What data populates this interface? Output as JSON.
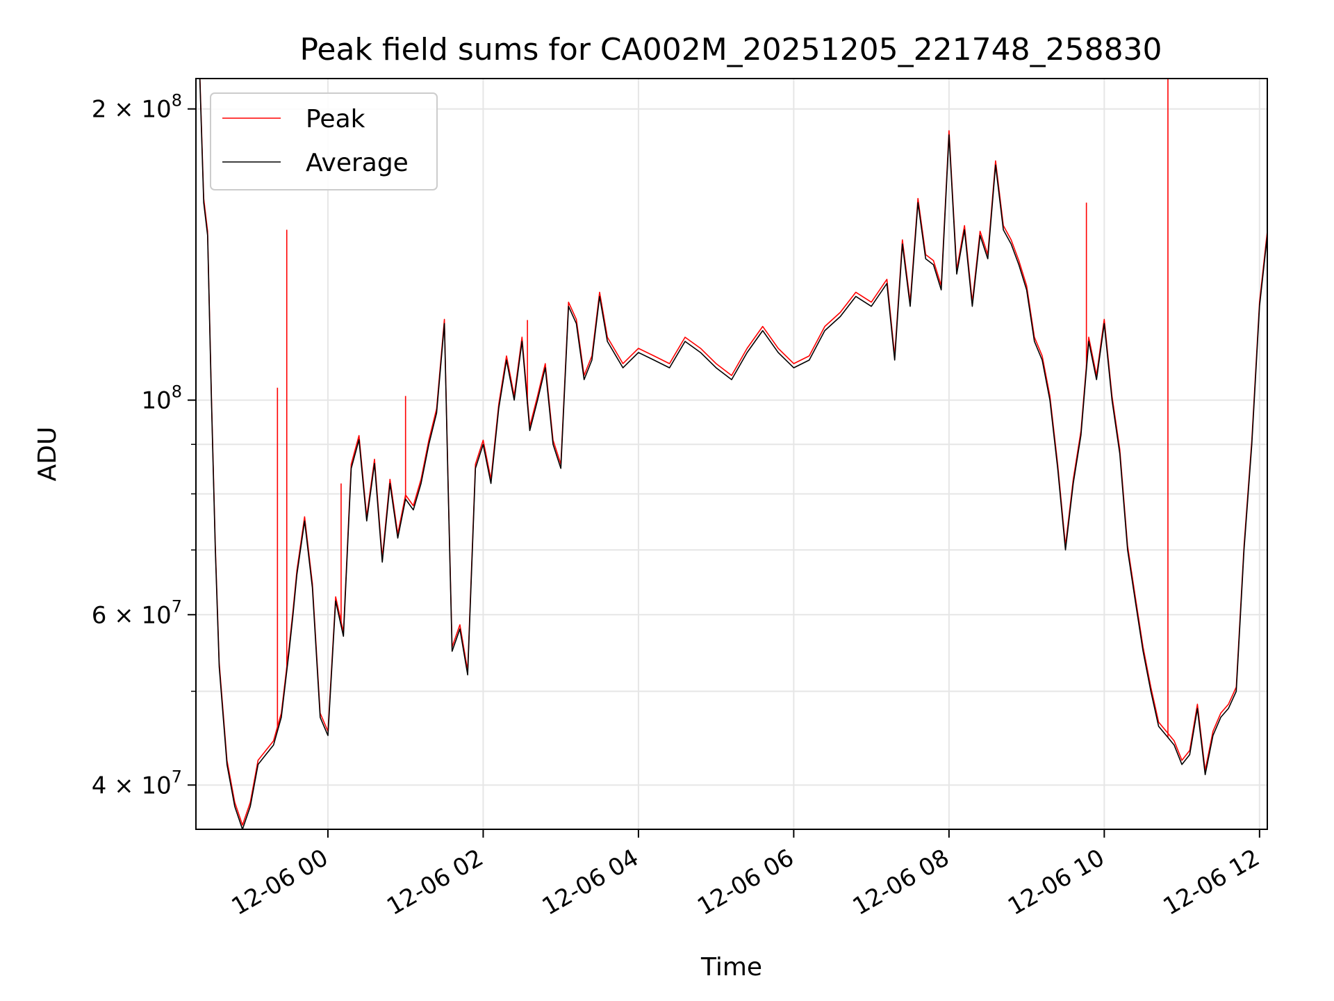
{
  "chart_data": {
    "type": "line",
    "title": "Peak field sums for CA002M_20251205_221748_258830",
    "xlabel": "Time",
    "ylabel": "ADU",
    "yscale": "log",
    "ylim": [
      36000000,
      215000000
    ],
    "xlim_hours": [
      -1.7,
      12.1
    ],
    "grid": true,
    "legend_position": "top-left",
    "x_ticks": [
      {
        "value": 0,
        "label": "12-06 00"
      },
      {
        "value": 2,
        "label": "12-06 02"
      },
      {
        "value": 4,
        "label": "12-06 04"
      },
      {
        "value": 6,
        "label": "12-06 06"
      },
      {
        "value": 8,
        "label": "12-06 08"
      },
      {
        "value": 10,
        "label": "12-06 10"
      },
      {
        "value": 12,
        "label": "12-06 12"
      }
    ],
    "y_ticks": [
      {
        "value": 40000000,
        "base": "4 × 10",
        "exp": "7"
      },
      {
        "value": 60000000,
        "base": "6 × 10",
        "exp": "7"
      },
      {
        "value": 100000000,
        "base": "10",
        "exp": "8"
      },
      {
        "value": 200000000,
        "base": "2 × 10",
        "exp": "8"
      }
    ],
    "y_minor_ticks": [
      50000000,
      70000000,
      80000000,
      90000000
    ],
    "series": [
      {
        "name": "Peak",
        "color": "#ff0000",
        "spikes": [
          {
            "x": -0.65,
            "y": 103000000
          },
          {
            "x": -0.53,
            "y": 150000000
          },
          {
            "x": 0.17,
            "y": 82000000
          },
          {
            "x": 1.0,
            "y": 101000000
          },
          {
            "x": 2.57,
            "y": 121000000
          },
          {
            "x": 9.77,
            "y": 160000000
          },
          {
            "x": 10.82,
            "y": 215000000
          }
        ]
      },
      {
        "name": "Average",
        "color": "#000000",
        "x": [
          -1.65,
          -1.6,
          -1.55,
          -1.5,
          -1.45,
          -1.4,
          -1.3,
          -1.2,
          -1.1,
          -1.0,
          -0.9,
          -0.8,
          -0.7,
          -0.6,
          -0.5,
          -0.45,
          -0.4,
          -0.3,
          -0.2,
          -0.1,
          0.0,
          0.1,
          0.2,
          0.3,
          0.4,
          0.5,
          0.6,
          0.7,
          0.8,
          0.9,
          1.0,
          1.1,
          1.2,
          1.3,
          1.4,
          1.5,
          1.55,
          1.6,
          1.7,
          1.8,
          1.9,
          2.0,
          2.1,
          2.2,
          2.3,
          2.4,
          2.5,
          2.6,
          2.7,
          2.8,
          2.9,
          3.0,
          3.1,
          3.2,
          3.3,
          3.4,
          3.5,
          3.6,
          3.8,
          4.0,
          4.2,
          4.4,
          4.6,
          4.8,
          5.0,
          5.2,
          5.4,
          5.6,
          5.8,
          6.0,
          6.2,
          6.4,
          6.6,
          6.8,
          7.0,
          7.2,
          7.3,
          7.4,
          7.5,
          7.6,
          7.7,
          7.8,
          7.9,
          8.0,
          8.1,
          8.2,
          8.3,
          8.4,
          8.5,
          8.6,
          8.7,
          8.8,
          8.9,
          9.0,
          9.1,
          9.2,
          9.3,
          9.4,
          9.5,
          9.6,
          9.7,
          9.8,
          9.9,
          10.0,
          10.1,
          10.2,
          10.3,
          10.4,
          10.5,
          10.6,
          10.7,
          10.8,
          10.9,
          11.0,
          11.1,
          11.2,
          11.3,
          11.4,
          11.5,
          11.6,
          11.7,
          11.8,
          11.9,
          12.0,
          12.1
        ],
        "y": [
          215000000,
          160000000,
          148000000,
          100000000,
          70000000,
          53000000,
          42000000,
          38000000,
          36000000,
          38000000,
          42000000,
          43000000,
          44000000,
          47000000,
          55000000,
          60000000,
          66000000,
          75000000,
          64000000,
          47000000,
          45000000,
          62000000,
          57000000,
          85000000,
          91000000,
          75000000,
          86000000,
          68000000,
          82000000,
          72000000,
          79000000,
          77000000,
          82000000,
          90000000,
          97000000,
          120000000,
          80000000,
          55000000,
          58000000,
          52000000,
          85000000,
          90000000,
          82000000,
          98000000,
          110000000,
          100000000,
          115000000,
          93000000,
          100000000,
          108000000,
          90000000,
          85000000,
          125000000,
          120000000,
          105000000,
          110000000,
          128000000,
          115000000,
          108000000,
          112000000,
          110000000,
          108000000,
          115000000,
          112000000,
          108000000,
          105000000,
          112000000,
          118000000,
          112000000,
          108000000,
          110000000,
          118000000,
          122000000,
          128000000,
          125000000,
          132000000,
          110000000,
          145000000,
          125000000,
          160000000,
          140000000,
          138000000,
          130000000,
          188000000,
          135000000,
          150000000,
          125000000,
          148000000,
          140000000,
          175000000,
          150000000,
          145000000,
          138000000,
          130000000,
          115000000,
          110000000,
          100000000,
          85000000,
          70000000,
          82000000,
          92000000,
          115000000,
          105000000,
          120000000,
          100000000,
          88000000,
          70000000,
          62000000,
          55000000,
          50000000,
          46000000,
          45000000,
          44000000,
          42000000,
          43000000,
          48000000,
          41000000,
          45000000,
          47000000,
          48000000,
          50000000,
          70000000,
          90000000,
          125000000,
          148000000
        ]
      }
    ]
  }
}
